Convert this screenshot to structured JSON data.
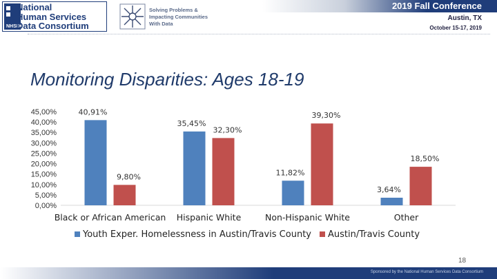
{
  "header": {
    "org_name": [
      "National",
      "Human Services",
      "Data Consortium"
    ],
    "org_abbrev": "NHSDC",
    "tagline": [
      "Solving Problems &",
      "Impacting Communities",
      "With Data"
    ],
    "conference": "2019 Fall Conference",
    "city": "Austin, TX",
    "dates": "October 15-17, 2019"
  },
  "slide": {
    "title": "Monitoring Disparities: Ages 18-19",
    "page_number": "18",
    "footer": "Sponsored by the National Human Services Data Consortium"
  },
  "colors": {
    "series1": "#4f81bd",
    "series2": "#c0504d",
    "title": "#1f3a6a",
    "brand": "#1f3d7a"
  },
  "chart_data": {
    "type": "bar",
    "categories": [
      "Black or African American",
      "Hispanic White",
      "Non-Hispanic White",
      "Other"
    ],
    "series": [
      {
        "name": "Youth Exper. Homelessness in Austin/Travis County",
        "values": [
          40.91,
          35.45,
          11.82,
          3.64
        ],
        "labels": [
          "40,91%",
          "35,45%",
          "11,82%",
          "3,64%"
        ]
      },
      {
        "name": "Austin/Travis County",
        "values": [
          9.8,
          32.3,
          39.3,
          18.5
        ],
        "labels": [
          "9,80%",
          "32,30%",
          "39,30%",
          "18,50%"
        ]
      }
    ],
    "ylim": [
      0,
      45
    ],
    "yticks": [
      "0,00%",
      "5,00%",
      "10,00%",
      "15,00%",
      "20,00%",
      "25,00%",
      "30,00%",
      "35,00%",
      "40,00%",
      "45,00%"
    ],
    "grid": false,
    "legend": "bottom"
  }
}
